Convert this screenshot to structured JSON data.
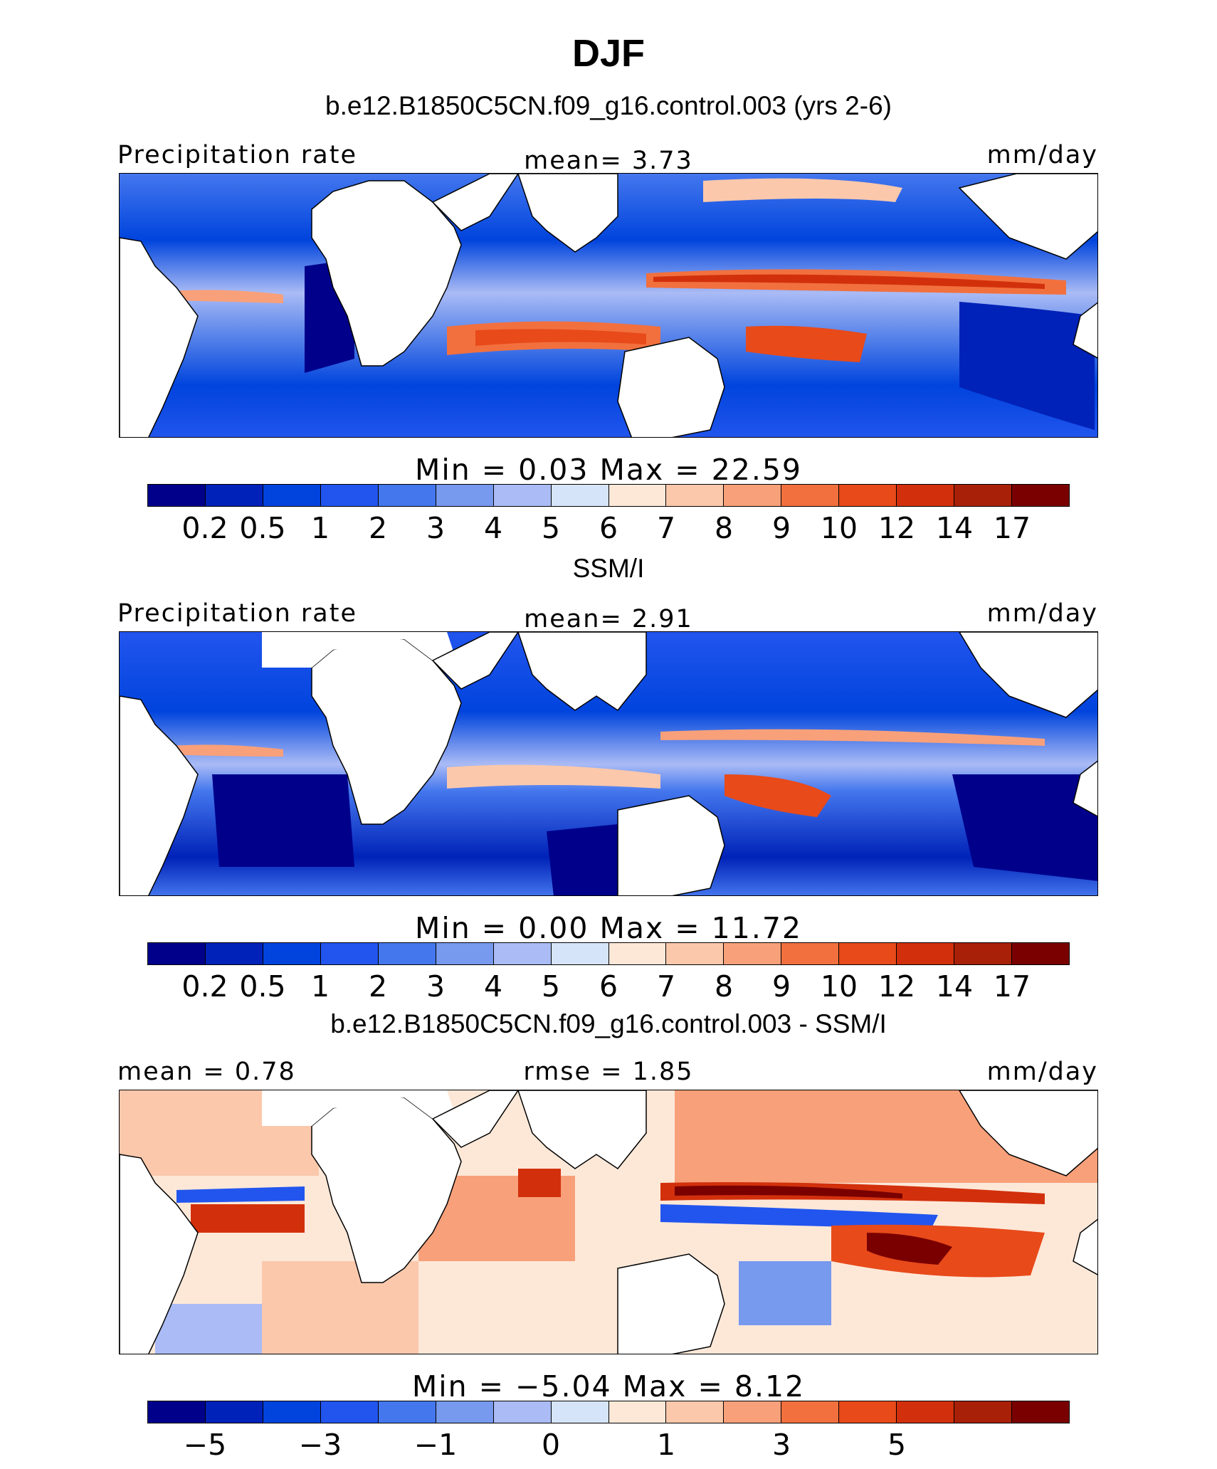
{
  "header": {
    "season": "DJF",
    "model_title": "b.e12.B1850C5CN.f09_g16.control.003 (yrs 2-6)"
  },
  "panels": [
    {
      "left_label": "Precipitation rate",
      "center_label": "mean=   3.73",
      "right_label": "mm/day",
      "colorbar_stats": "Min =    0.03 Max =   22.59",
      "colorbar_ticks": [
        "0.2",
        "0.5",
        "1",
        "2",
        "3",
        "4",
        "5",
        "6",
        "7",
        "8",
        "9",
        "10",
        "12",
        "14",
        "17"
      ]
    },
    {
      "title": "SSM/I",
      "left_label": "Precipitation rate",
      "center_label": "mean=   2.91",
      "right_label": "mm/day",
      "colorbar_stats": "Min =    0.00 Max =   11.72",
      "colorbar_ticks": [
        "0.2",
        "0.5",
        "1",
        "2",
        "3",
        "4",
        "5",
        "6",
        "7",
        "8",
        "9",
        "10",
        "12",
        "14",
        "17"
      ]
    },
    {
      "title": "b.e12.B1850C5CN.f09_g16.control.003 - SSM/I",
      "left_label": "mean =   0.78",
      "center_label": "rmse =   1.85",
      "right_label": "mm/day",
      "colorbar_stats": "Min =  −5.04 Max =   8.12",
      "colorbar_ticks": [
        "−5",
        "−3",
        "−1",
        "0",
        "1",
        "3",
        "5"
      ]
    }
  ],
  "palette": [
    "#00008b",
    "#0022b8",
    "#0044dd",
    "#2255ee",
    "#4477ee",
    "#7799ee",
    "#aabbf5",
    "#d6e4fa",
    "#fde8d8",
    "#fbc8ac",
    "#f8a07a",
    "#f2703e",
    "#e84a1a",
    "#d2300c",
    "#a82008",
    "#7a0000"
  ],
  "diff_palette": [
    "#00008b",
    "#0022b8",
    "#0044dd",
    "#2255ee",
    "#4477ee",
    "#7799ee",
    "#aabbf5",
    "#d6e4fa",
    "#fde8d8",
    "#fbc8ac",
    "#f8a07a",
    "#f2703e",
    "#e84a1a",
    "#d2300c",
    "#a82008",
    "#7a0000"
  ]
}
